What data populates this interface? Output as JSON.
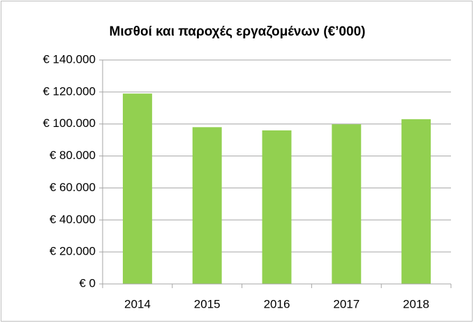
{
  "chart_data": {
    "type": "bar",
    "title": "Μισθοί και παροχές εργαζομένων (€’000)",
    "categories": [
      "2014",
      "2015",
      "2016",
      "2017",
      "2018"
    ],
    "values": [
      119000,
      98000,
      96000,
      99800,
      103000
    ],
    "color": "#92d050",
    "ylim": [
      0,
      140000
    ],
    "yticks": [
      {
        "value": 0,
        "label": "€ 0"
      },
      {
        "value": 20000,
        "label": "€ 20.000"
      },
      {
        "value": 40000,
        "label": "€ 40.000"
      },
      {
        "value": 60000,
        "label": "€ 60.000"
      },
      {
        "value": 80000,
        "label": "€ 80.000"
      },
      {
        "value": 100000,
        "label": "€ 100.000"
      },
      {
        "value": 120000,
        "label": "€ 120.000"
      },
      {
        "value": 140000,
        "label": "€ 140.000"
      }
    ],
    "grid": true
  }
}
